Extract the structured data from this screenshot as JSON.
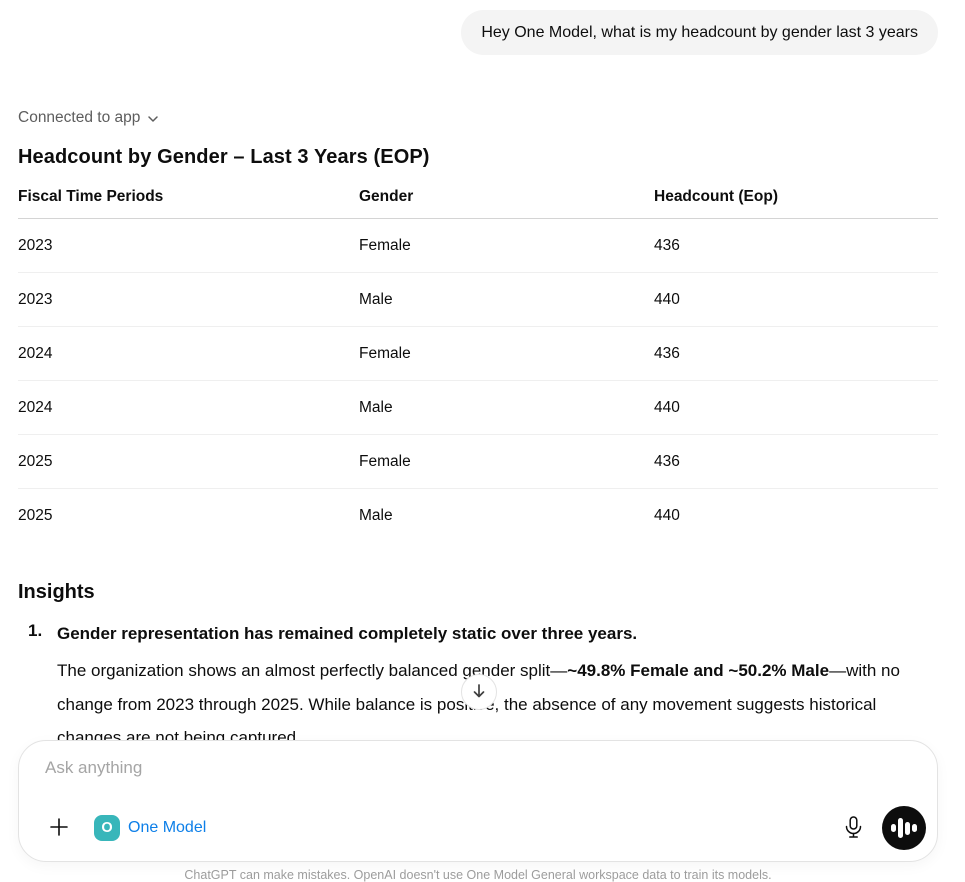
{
  "chat": {
    "user_message": "Hey One Model, what is my headcount by gender last 3 years",
    "connector_status": "Connected to app"
  },
  "report": {
    "title": "Headcount by Gender – Last 3 Years (EOP)",
    "table": {
      "columns": [
        "Fiscal Time Periods",
        "Gender",
        "Headcount (Eop)"
      ],
      "rows": [
        [
          "2023",
          "Female",
          "436"
        ],
        [
          "2023",
          "Male",
          "440"
        ],
        [
          "2024",
          "Female",
          "436"
        ],
        [
          "2024",
          "Male",
          "440"
        ],
        [
          "2025",
          "Female",
          "436"
        ],
        [
          "2025",
          "Male",
          "440"
        ]
      ]
    },
    "insights": {
      "heading": "Insights",
      "items": [
        {
          "number": "1.",
          "title": "Gender representation has remained completely static over three years.",
          "body_parts": [
            {
              "text": "The organization shows an almost perfectly balanced gender split—",
              "bold": false
            },
            {
              "text": "~49.8% Female and ~50.2% Male",
              "bold": true
            },
            {
              "text": "—with no change from 2023 through 2025. While balance is positive, the absence of any movement suggests historical changes are not being captured.",
              "bold": false
            }
          ]
        }
      ]
    }
  },
  "composer": {
    "placeholder": "Ask anything",
    "connector_label": "One Model",
    "badge_letter": "O",
    "badge_color": "#38b6ba",
    "link_color": "#0d7fe8"
  },
  "footer": {
    "disclaimer": "ChatGPT can make mistakes. OpenAI doesn't use One Model General workspace data to train its models."
  },
  "icons": {
    "chevron_down": "chevron-down-icon",
    "scroll_arrow": "arrow-down-icon",
    "plus": "plus-icon",
    "mic": "microphone-icon",
    "voice": "voice-waveform-icon"
  }
}
